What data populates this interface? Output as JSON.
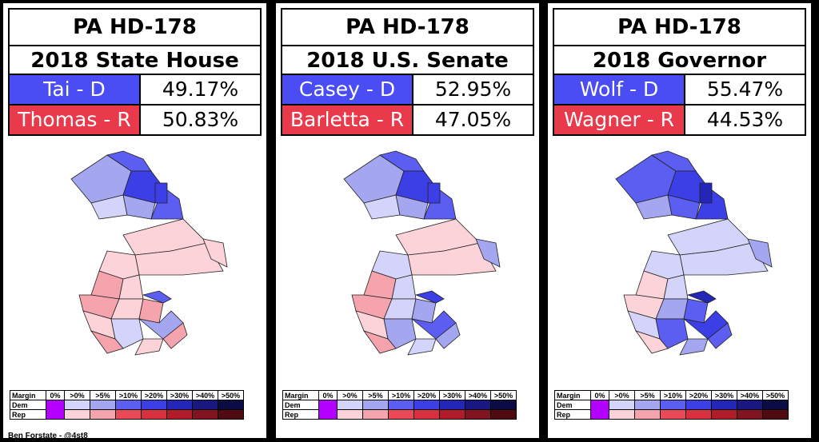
{
  "panels": [
    {
      "title_line1": "PA HD-178",
      "title_line2": "2018 State House",
      "dem": {
        "candidate": "Tai - D",
        "pct": "49.17%"
      },
      "rep": {
        "candidate": "Thomas - R",
        "pct": "50.83%"
      }
    },
    {
      "title_line1": "PA HD-178",
      "title_line2": "2018 U.S. Senate",
      "dem": {
        "candidate": "Casey - D",
        "pct": "52.95%"
      },
      "rep": {
        "candidate": "Barletta - R",
        "pct": "47.05%"
      }
    },
    {
      "title_line1": "PA HD-178",
      "title_line2": "2018 Governor",
      "dem": {
        "candidate": "Wolf - D",
        "pct": "55.47%"
      },
      "rep": {
        "candidate": "Wagner - R",
        "pct": "44.53%"
      }
    }
  ],
  "legend": {
    "margin_label": "Margin",
    "dem_label": "Dem",
    "rep_label": "Rep",
    "buckets": [
      "0%",
      ">0%",
      ">5%",
      ">10%",
      ">20%",
      ">30%",
      ">40%",
      ">50%"
    ]
  },
  "colors": {
    "dem_header": "#4a4cf4",
    "rep_header": "#e83a4a",
    "tie": "#b400ff",
    "dem_scale": [
      "#d4d4fb",
      "#a5a6f0",
      "#5c5ef2",
      "#3c3ee6",
      "#2426b8",
      "#181880",
      "#0c0c44"
    ],
    "rep_scale": [
      "#fbd3d8",
      "#f5a3ac",
      "#ea4a58",
      "#d8303e",
      "#b01c2a",
      "#801420",
      "#500a12"
    ]
  },
  "credit": "Ben Forstate - @4st8"
}
